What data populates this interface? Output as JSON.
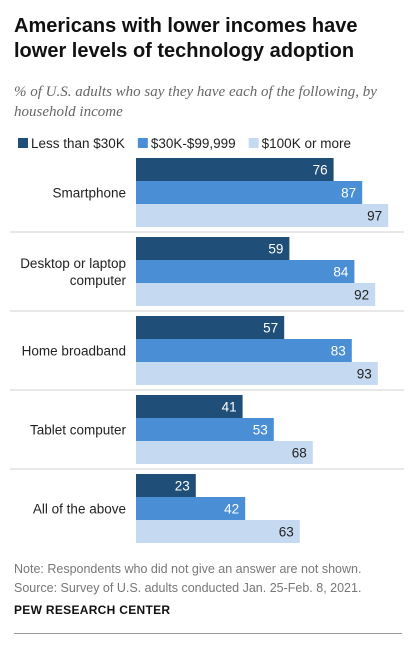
{
  "header": {
    "title": "Americans with lower incomes have lower levels of technology adoption",
    "subtitle": "% of U.S. adults who say they have each of the following, by household income"
  },
  "chart_data": {
    "type": "bar",
    "orientation": "horizontal",
    "categories": [
      "Smartphone",
      "Desktop or laptop computer",
      "Home broadband",
      "Tablet computer",
      "All of the above"
    ],
    "series": [
      {
        "name": "Less than $30K",
        "color": "#1f4e79",
        "values": [
          76,
          59,
          57,
          41,
          23
        ]
      },
      {
        "name": "$30K-$99,999",
        "color": "#4a8fd6",
        "values": [
          87,
          84,
          83,
          53,
          42
        ]
      },
      {
        "name": "$100K or more",
        "color": "#c5daf0",
        "values": [
          97,
          92,
          93,
          68,
          63
        ]
      }
    ],
    "xlim": [
      0,
      100
    ],
    "legend": "top",
    "grid": false,
    "data_labels": true
  },
  "footer": {
    "note": "Note: Respondents who did not give an answer are not shown.",
    "source": "Source: Survey of U.S. adults conducted Jan. 25-Feb. 8, 2021.",
    "org": "PEW RESEARCH CENTER"
  }
}
